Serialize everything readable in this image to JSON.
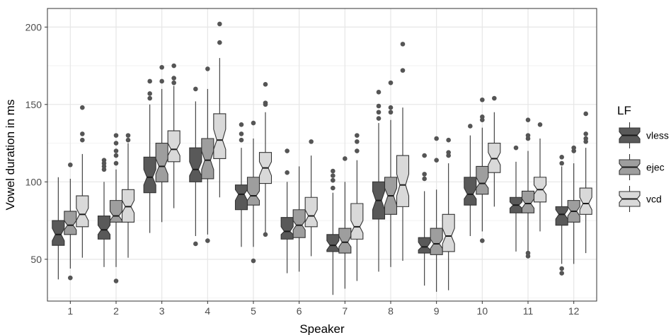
{
  "chart_data": {
    "type": "boxplot",
    "notched": true,
    "xlabel": "Speaker",
    "ylabel": "Vowel duration in ms",
    "ylim": [
      23,
      212
    ],
    "yticks": [
      50,
      100,
      150,
      200
    ],
    "grid": true,
    "categories": [
      "1",
      "2",
      "3",
      "4",
      "5",
      "6",
      "7",
      "8",
      "9",
      "10",
      "11",
      "12"
    ],
    "legend": {
      "title": "LF",
      "position": "right"
    },
    "series": [
      {
        "name": "vless",
        "color": "#595959",
        "boxes": [
          {
            "whisker_low": 37,
            "q1": 59,
            "median": 66,
            "q3": 75,
            "whisker_high": 103,
            "notch_low": 62,
            "notch_high": 70,
            "outliers": []
          },
          {
            "whisker_low": 45,
            "q1": 63,
            "median": 69,
            "q3": 78,
            "whisker_high": 100,
            "notch_low": 66,
            "notch_high": 72,
            "outliers": [
              108,
              110,
              112,
              114
            ]
          },
          {
            "whisker_low": 67,
            "q1": 93,
            "median": 103,
            "q3": 116,
            "whisker_high": 150,
            "notch_low": 98,
            "notch_high": 108,
            "outliers": [
              154,
              157,
              165
            ]
          },
          {
            "whisker_low": 65,
            "q1": 100,
            "median": 108,
            "q3": 122,
            "whisker_high": 152,
            "notch_low": 104,
            "notch_high": 113,
            "outliers": [
              60,
              160
            ]
          },
          {
            "whisker_low": 58,
            "q1": 82,
            "median": 92,
            "q3": 98,
            "whisker_high": 122,
            "notch_low": 88,
            "notch_high": 95,
            "outliers": [
              127,
              131,
              137
            ]
          },
          {
            "whisker_low": 41,
            "q1": 63,
            "median": 68,
            "q3": 77,
            "whisker_high": 100,
            "notch_low": 66,
            "notch_high": 71,
            "outliers": [
              106,
              120
            ]
          },
          {
            "whisker_low": 27,
            "q1": 55,
            "median": 59,
            "q3": 66,
            "whisker_high": 93,
            "notch_low": 56,
            "notch_high": 62,
            "outliers": [
              96,
              101,
              104,
              107
            ]
          },
          {
            "whisker_low": 42,
            "q1": 76,
            "median": 88,
            "q3": 100,
            "whisker_high": 138,
            "notch_low": 82,
            "notch_high": 94,
            "outliers": [
              141,
              145,
              149,
              158
            ]
          },
          {
            "whisker_low": 33,
            "q1": 54,
            "median": 58,
            "q3": 64,
            "whisker_high": 94,
            "notch_low": 56,
            "notch_high": 61,
            "outliers": [
              102,
              105,
              117
            ]
          },
          {
            "whisker_low": 65,
            "q1": 85,
            "median": 92,
            "q3": 103,
            "whisker_high": 130,
            "notch_low": 89,
            "notch_high": 96,
            "outliers": [
              136
            ]
          },
          {
            "whisker_low": 55,
            "q1": 80,
            "median": 85,
            "q3": 90,
            "whisker_high": 113,
            "notch_low": 83,
            "notch_high": 87,
            "outliers": [
              122
            ]
          },
          {
            "whisker_low": 47,
            "q1": 72,
            "median": 79,
            "q3": 84,
            "whisker_high": 110,
            "notch_low": 76,
            "notch_high": 82,
            "outliers": [
              41,
              44,
              112,
              116
            ]
          }
        ]
      },
      {
        "name": "ejec",
        "color": "#9e9e9e",
        "boxes": [
          {
            "whisker_low": 44,
            "q1": 66,
            "median": 72,
            "q3": 81,
            "whisker_high": 102,
            "notch_low": 69,
            "notch_high": 75,
            "outliers": [
              38,
              111
            ]
          },
          {
            "whisker_low": 45,
            "q1": 74,
            "median": 78,
            "q3": 88,
            "whisker_high": 108,
            "notch_low": 75,
            "notch_high": 81,
            "outliers": [
              36,
              112,
              117,
              120,
              125,
              130
            ]
          },
          {
            "whisker_low": 74,
            "q1": 100,
            "median": 110,
            "q3": 125,
            "whisker_high": 160,
            "notch_low": 105,
            "notch_high": 115,
            "outliers": [
              165,
              174
            ]
          },
          {
            "whisker_low": 66,
            "q1": 102,
            "median": 114,
            "q3": 128,
            "whisker_high": 160,
            "notch_low": 108,
            "notch_high": 120,
            "outliers": [
              62,
              173
            ]
          },
          {
            "whisker_low": 58,
            "q1": 85,
            "median": 91,
            "q3": 103,
            "whisker_high": 128,
            "notch_low": 88,
            "notch_high": 94,
            "outliers": [
              49,
              138
            ]
          },
          {
            "whisker_low": 42,
            "q1": 64,
            "median": 72,
            "q3": 82,
            "whisker_high": 110,
            "notch_low": 69,
            "notch_high": 75,
            "outliers": []
          },
          {
            "whisker_low": 31,
            "q1": 54,
            "median": 61,
            "q3": 70,
            "whisker_high": 100,
            "notch_low": 58,
            "notch_high": 65,
            "outliers": [
              115
            ]
          },
          {
            "whisker_low": 45,
            "q1": 79,
            "median": 91,
            "q3": 103,
            "whisker_high": 140,
            "notch_low": 85,
            "notch_high": 96,
            "outliers": [
              145,
              148,
              164
            ]
          },
          {
            "whisker_low": 29,
            "q1": 53,
            "median": 60,
            "q3": 70,
            "whisker_high": 95,
            "notch_low": 57,
            "notch_high": 63,
            "outliers": [
              114,
              128
            ]
          },
          {
            "whisker_low": 68,
            "q1": 92,
            "median": 99,
            "q3": 110,
            "whisker_high": 135,
            "notch_low": 96,
            "notch_high": 103,
            "outliers": [
              62,
              140,
              142,
              153
            ]
          },
          {
            "whisker_low": 54,
            "q1": 80,
            "median": 86,
            "q3": 94,
            "whisker_high": 120,
            "notch_low": 83,
            "notch_high": 89,
            "outliers": [
              52,
              54,
              128,
              130,
              140
            ]
          },
          {
            "whisker_low": 47,
            "q1": 74,
            "median": 81,
            "q3": 88,
            "whisker_high": 112,
            "notch_low": 78,
            "notch_high": 84,
            "outliers": [
              120,
              122
            ]
          }
        ]
      },
      {
        "name": "vcd",
        "color": "#d9d9d9",
        "boxes": [
          {
            "whisker_low": 51,
            "q1": 71,
            "median": 79,
            "q3": 91,
            "whisker_high": 118,
            "notch_low": 75,
            "notch_high": 83,
            "outliers": [
              127,
              131,
              148
            ]
          },
          {
            "whisker_low": 51,
            "q1": 74,
            "median": 84,
            "q3": 95,
            "whisker_high": 125,
            "notch_low": 80,
            "notch_high": 88,
            "outliers": [
              127,
              130
            ]
          },
          {
            "whisker_low": 83,
            "q1": 113,
            "median": 121,
            "q3": 133,
            "whisker_high": 162,
            "notch_low": 117,
            "notch_high": 125,
            "outliers": [
              164,
              167,
              175
            ]
          },
          {
            "whisker_low": 90,
            "q1": 115,
            "median": 127,
            "q3": 144,
            "whisker_high": 180,
            "notch_low": 121,
            "notch_high": 134,
            "outliers": [
              190,
              202
            ]
          },
          {
            "whisker_low": 66,
            "q1": 99,
            "median": 109,
            "q3": 119,
            "whisker_high": 145,
            "notch_low": 104,
            "notch_high": 113,
            "outliers": [
              66,
              150,
              151,
              163
            ]
          },
          {
            "whisker_low": 52,
            "q1": 71,
            "median": 78,
            "q3": 90,
            "whisker_high": 117,
            "notch_low": 74,
            "notch_high": 82,
            "outliers": [
              126
            ]
          },
          {
            "whisker_low": 36,
            "q1": 63,
            "median": 71,
            "q3": 86,
            "whisker_high": 114,
            "notch_low": 67,
            "notch_high": 75,
            "outliers": [
              120,
              126,
              130
            ]
          },
          {
            "whisker_low": 49,
            "q1": 84,
            "median": 98,
            "q3": 117,
            "whisker_high": 148,
            "notch_low": 91,
            "notch_high": 105,
            "outliers": [
              172,
              189
            ]
          },
          {
            "whisker_low": 30,
            "q1": 55,
            "median": 65,
            "q3": 79,
            "whisker_high": 112,
            "notch_low": 60,
            "notch_high": 70,
            "outliers": [
              117,
              119,
              127
            ]
          },
          {
            "whisker_low": 84,
            "q1": 106,
            "median": 115,
            "q3": 125,
            "whisker_high": 145,
            "notch_low": 111,
            "notch_high": 119,
            "outliers": [
              154
            ]
          },
          {
            "whisker_low": 68,
            "q1": 87,
            "median": 95,
            "q3": 103,
            "whisker_high": 128,
            "notch_low": 92,
            "notch_high": 98,
            "outliers": [
              137
            ]
          },
          {
            "whisker_low": 54,
            "q1": 79,
            "median": 86,
            "q3": 96,
            "whisker_high": 122,
            "notch_low": 82,
            "notch_high": 90,
            "outliers": [
              126,
              128,
              131,
              144
            ]
          }
        ]
      }
    ]
  }
}
